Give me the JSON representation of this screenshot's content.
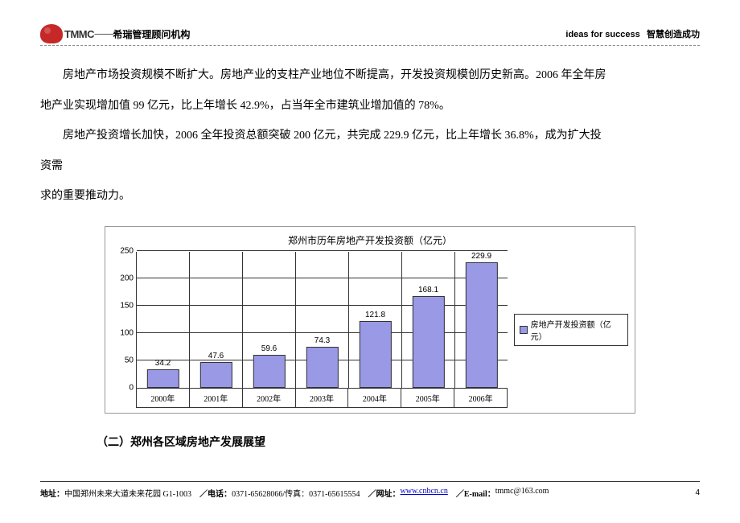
{
  "header": {
    "brand": "TMMC",
    "dashes": "----------",
    "company": "希瑞管理顾问机构",
    "slogan_en": "ideas for success",
    "slogan_cn": "智慧创造成功"
  },
  "paragraphs": {
    "p1": "房地产市场投资规模不断扩大。房地产业的支柱产业地位不断提高，开发投资规模创历史新高。2006 年全年房",
    "p2": "地产业实现增加值 99 亿元，比上年增长 42.9%，占当年全市建筑业增加值的 78%。",
    "p3": "房地产投资增长加快，2006 全年投资总额突破 200 亿元，共完成 229.9 亿元，比上年增长 36.8%，成为扩大投",
    "p4": "资需",
    "p5": "求的重要推动力。"
  },
  "chart": {
    "type": "bar",
    "title": "郑州市历年房地产开发投资额（亿元）",
    "categories": [
      "2000年",
      "2001年",
      "2002年",
      "2003年",
      "2004年",
      "2005年",
      "2006年"
    ],
    "values": [
      34.2,
      47.6,
      59.6,
      74.3,
      121.8,
      168.1,
      229.9
    ],
    "ymax": 250,
    "yticks": [
      0,
      50,
      100,
      150,
      200,
      250
    ],
    "bar_color": "#9999e6",
    "border_color": "#333333",
    "legend_label": "房地产开发投资额（亿元）",
    "title_fontsize": 12,
    "label_fontsize": 10
  },
  "section": {
    "title": "（二）郑州各区域房地产发展展望"
  },
  "footer": {
    "address_label": "地址：",
    "address": "中国郑州未来大道未来花园 G1-1003",
    "phone_label": "／电话：",
    "phone": "0371-65628066/传真：0371-65615554",
    "web_label": "／网址：",
    "web": "www.cnbcn.cn",
    "email_label": "／E-mail：",
    "email": "tmmc@163.com",
    "page": "4"
  }
}
